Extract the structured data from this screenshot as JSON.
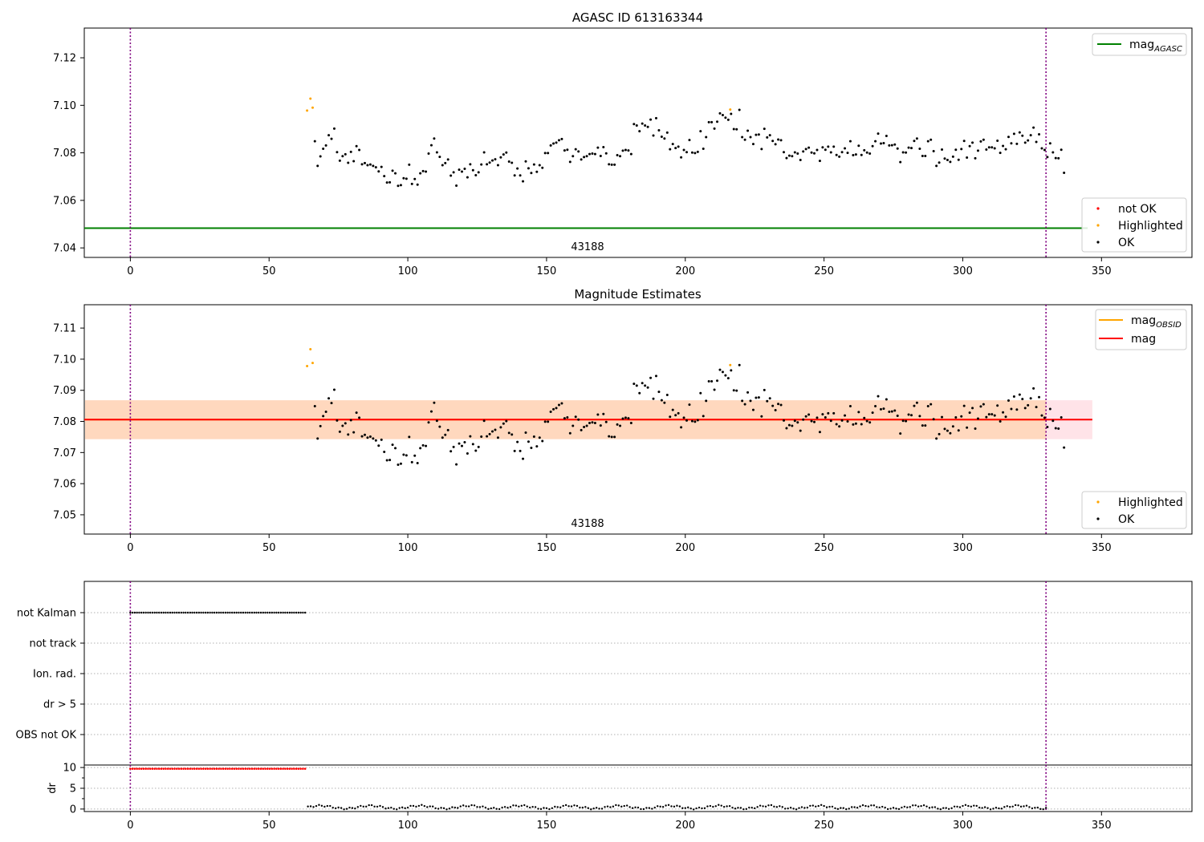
{
  "chart_data": [
    {
      "type": "scatter",
      "title": "AGASC ID 613163344",
      "xlabel": "",
      "ylabel": "",
      "xlim": [
        -16.6,
        382.6
      ],
      "ylim": [
        7.036,
        7.1325
      ],
      "x_ticks": [
        "0",
        "50",
        "100",
        "150",
        "200",
        "250",
        "300",
        "350"
      ],
      "y_ticks": [
        "7.04",
        "7.06",
        "7.08",
        "7.10",
        "7.12"
      ],
      "annotation": "43188",
      "vlines": [
        0,
        330
      ],
      "hline": {
        "name": "mag",
        "subscript": "AGASC",
        "value": 7.0483,
        "color": "#008000",
        "x_range": [
          -16.6,
          345
        ]
      },
      "legend_top": [
        {
          "name": "mag",
          "subscript": "AGASC",
          "color": "#008000",
          "kind": "line"
        }
      ],
      "legend_bottom": [
        {
          "name": "not OK",
          "color": "#ff0000",
          "kind": "point"
        },
        {
          "name": "Highlighted",
          "color": "#ffa500",
          "kind": "point"
        },
        {
          "name": "OK",
          "color": "#000000",
          "kind": "point"
        }
      ],
      "legend_placement": [
        "upper right",
        "lower right"
      ],
      "highlighted": [
        [
          63.7,
          7.0978
        ],
        [
          64.9,
          7.1028
        ],
        [
          65.7,
          7.099
        ],
        [
          216.2,
          7.0982
        ]
      ],
      "ok_series": "mag_points"
    },
    {
      "type": "scatter",
      "title": "Magnitude Estimates",
      "xlabel": "",
      "ylabel": "",
      "xlim": [
        -16.6,
        382.6
      ],
      "ylim": [
        7.0438,
        7.1175
      ],
      "x_ticks": [
        "0",
        "50",
        "100",
        "150",
        "200",
        "250",
        "300",
        "350"
      ],
      "y_ticks": [
        "7.05",
        "7.06",
        "7.07",
        "7.08",
        "7.09",
        "7.10",
        "7.11"
      ],
      "annotation": "43188",
      "vlines": [
        0,
        330
      ],
      "mag": {
        "value": 7.0806,
        "band": [
          7.0743,
          7.0868
        ],
        "x_range": [
          -16.6,
          346.7
        ],
        "color": "#ff0000"
      },
      "mag_obsid": {
        "value": 7.0806,
        "band": [
          7.0743,
          7.0868
        ],
        "x_range": [
          -16.6,
          330
        ],
        "color": "#ffa500"
      },
      "legend_top": [
        {
          "name": "mag",
          "subscript": "OBSID",
          "color": "#ffa500",
          "kind": "line"
        },
        {
          "name": "mag",
          "subscript": "",
          "color": "#ff0000",
          "kind": "line"
        }
      ],
      "legend_bottom": [
        {
          "name": "Highlighted",
          "color": "#ffa500",
          "kind": "point"
        },
        {
          "name": "OK",
          "color": "#000000",
          "kind": "point"
        }
      ],
      "legend_placement": [
        "upper right",
        "lower right"
      ],
      "highlighted": [
        [
          63.7,
          7.0978
        ],
        [
          64.9,
          7.1032
        ],
        [
          65.7,
          7.0988
        ],
        [
          216.2,
          7.0981
        ]
      ],
      "ok_series": "mag_points"
    },
    {
      "type": "scatter",
      "title": "",
      "xlabel": "",
      "ylabel": "",
      "xlim": [
        -16.6,
        382.6
      ],
      "x_ticks": [
        "0",
        "50",
        "100",
        "150",
        "200",
        "250",
        "300",
        "350"
      ],
      "y_categories": [
        "not Kalman",
        "not track",
        "Ion. rad.",
        "dr > 5",
        "OBS not OK"
      ],
      "vlines": [
        0,
        330
      ],
      "flags": [
        {
          "category": "not Kalman",
          "x_range": [
            0,
            63
          ],
          "n": 80,
          "color": "#000000"
        }
      ],
      "grid": true
    },
    {
      "type": "scatter",
      "title": "",
      "xlabel": "",
      "ylabel": "dr",
      "xlim": [
        -16.6,
        382.6
      ],
      "ylim": [
        -0.6,
        10.6
      ],
      "x_ticks": [
        "0",
        "50",
        "100",
        "150",
        "200",
        "250",
        "300",
        "350"
      ],
      "y_ticks": [
        "0",
        "5",
        "10"
      ],
      "vlines": [
        0,
        330
      ],
      "clipped_points": {
        "x_range": [
          0,
          63
        ],
        "n": 80,
        "value": 10,
        "color": "#ff0000"
      },
      "ok_points": {
        "x_range": [
          64,
          330
        ],
        "base": 0.45,
        "color": "#000000"
      }
    }
  ],
  "mag_points": {
    "x_start": 66.5,
    "x_step": 1,
    "y": [
      7.0849,
      7.0745,
      7.0785,
      7.0817,
      7.0831,
      7.0874,
      7.0859,
      7.0902,
      7.0803,
      7.0767,
      7.0786,
      7.0794,
      7.0758,
      7.0804,
      7.0765,
      7.0828,
      7.0812,
      7.0752,
      7.0757,
      7.0748,
      7.0751,
      7.0745,
      7.0739,
      7.0722,
      7.0741,
      7.0702,
      7.0675,
      7.0676,
      7.0725,
      7.0714,
      7.0661,
      7.0664,
      7.0693,
      7.0691,
      7.075,
      7.0669,
      7.069,
      7.0666,
      7.0714,
      7.0723,
      7.0721,
      7.0797,
      7.0832,
      7.086,
      7.0802,
      7.0783,
      7.0748,
      7.0757,
      7.0772,
      7.0704,
      7.0718,
      7.0662,
      7.0729,
      7.0721,
      7.0733,
      7.0697,
      7.0752,
      7.0727,
      7.0706,
      7.0718,
      7.0751,
      7.0802,
      7.0752,
      7.0759,
      7.0768,
      7.0773,
      7.0748,
      7.0781,
      7.0793,
      7.0801,
      7.0763,
      7.0758,
      7.0705,
      7.0734,
      7.0705,
      7.068,
      7.0764,
      7.0735,
      7.0715,
      7.0751,
      7.072,
      7.0748,
      7.0737,
      7.0799,
      7.0799,
      7.0831,
      7.0839,
      7.0843,
      7.0853,
      7.0858,
      7.081,
      7.0813,
      7.0762,
      7.0786,
      7.0815,
      7.0806,
      7.0772,
      7.0782,
      7.0786,
      7.0795,
      7.0797,
      7.0795,
      7.0822,
      7.0787,
      7.0824,
      7.0798,
      7.0752,
      7.075,
      7.075,
      7.079,
      7.0786,
      7.0809,
      7.0812,
      7.081,
      7.0795,
      7.0921,
      7.0915,
      7.0891,
      7.0923,
      7.0915,
      7.0909,
      7.094,
      7.0873,
      7.0946,
      7.0895,
      7.0868,
      7.086,
      7.0885,
      7.0815,
      7.0837,
      7.082,
      7.0826,
      7.0781,
      7.0812,
      7.0803,
      7.0854,
      7.0801,
      7.0799,
      7.0804,
      7.0891,
      7.0817,
      7.0866,
      7.0929,
      7.0929,
      7.0902,
      7.0931,
      7.0966,
      7.0959,
      7.0948,
      7.0939,
      7.0964,
      7.09,
      7.0899,
      7.0981,
      7.0866,
      7.0855,
      7.0893,
      7.0866,
      7.0837,
      7.0876,
      7.0877,
      7.0816,
      7.0901,
      7.0865,
      7.0874,
      7.085,
      7.0836,
      7.0856,
      7.0853,
      7.0803,
      7.0778,
      7.0788,
      7.0786,
      7.0802,
      7.0797,
      7.077,
      7.0806,
      7.0816,
      7.0822,
      7.0801,
      7.0798,
      7.0812,
      7.0766,
      7.0823,
      7.0813,
      7.0826,
      7.0802,
      7.0826,
      7.0791,
      7.0784,
      7.0803,
      7.0819,
      7.08,
      7.0849,
      7.079,
      7.0793,
      7.083,
      7.0791,
      7.0811,
      7.0801,
      7.0797,
      7.0828,
      7.0849,
      7.0881,
      7.0839,
      7.0841,
      7.0871,
      7.0831,
      7.0832,
      7.0835,
      7.0818,
      7.0761,
      7.0802,
      7.0801,
      7.0822,
      7.082,
      7.085,
      7.086,
      7.0817,
      7.0787,
      7.0787,
      7.0849,
      7.0855,
      7.0807,
      7.0745,
      7.0759,
      7.0814,
      7.0776,
      7.077,
      7.0762,
      7.0784,
      7.0813,
      7.0771,
      7.0816,
      7.085,
      7.078,
      7.0828,
      7.0843,
      7.0777,
      7.0809,
      7.0848,
      7.0855,
      7.0814,
      7.0823,
      7.0823,
      7.0819,
      7.0851,
      7.08,
      7.0829,
      7.0815,
      7.0867,
      7.084,
      7.088,
      7.0838,
      7.0886,
      7.0872,
      7.0843,
      7.0852,
      7.0874,
      7.0906,
      7.0846,
      7.0878,
      7.0819,
      7.0812,
      7.0782,
      7.084,
      7.0802,
      7.0778,
      7.0777,
      7.0813,
      7.0716
    ]
  }
}
